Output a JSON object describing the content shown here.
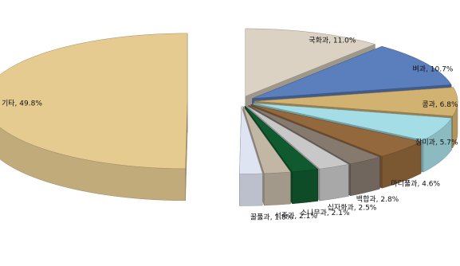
{
  "chart_data": {
    "type": "pie",
    "style": "3d-exploded",
    "categories": [
      "국화과",
      "벼과",
      "콩과",
      "장미과",
      "마디풀과",
      "백합과",
      "십자화과",
      "소나무과",
      "석죽과",
      "꿀풀과",
      "기타"
    ],
    "values": [
      11.0,
      10.7,
      6.8,
      5.7,
      4.6,
      2.8,
      2.5,
      2.1,
      2.1,
      1.8,
      49.8
    ],
    "labels": [
      "국화과, 11.0%",
      "벼과, 10.7%",
      "콩과, 6.8%",
      "장미과, 5.7%",
      "마디풀과, 4.6%",
      "백합과, 2.8%",
      "십자화과, 2.5%",
      "소나무과, 2.1%",
      "석죽과, 2.1%",
      "꿀풀과, 1.8%",
      "기타, 49.8%"
    ],
    "colors": [
      "#dcd2c3",
      "#5b7fbd",
      "#d2b270",
      "#a5dde6",
      "#93683c",
      "#867a6f",
      "#c8c8c8",
      "#0f5a2e",
      "#c2b6a4",
      "#dfe4f3",
      "#e6cb91"
    ],
    "legend": "none",
    "grid": false
  }
}
